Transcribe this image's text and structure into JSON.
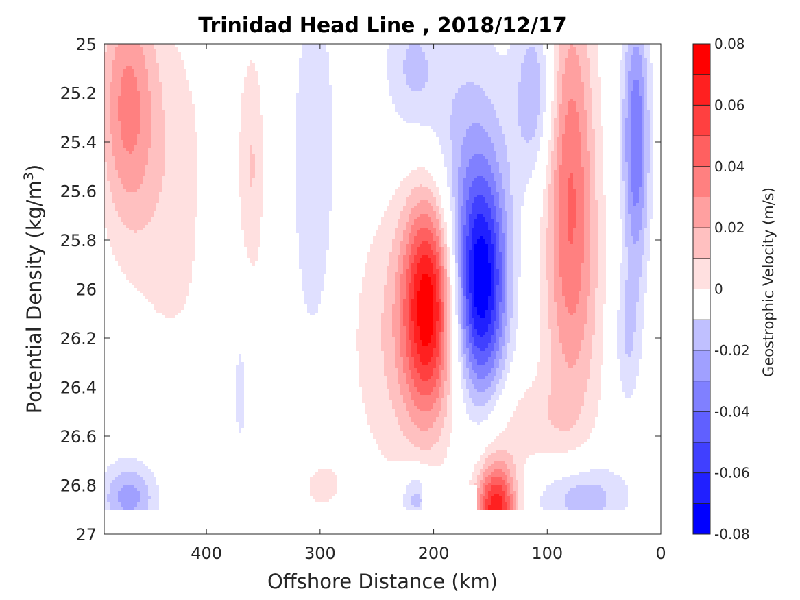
{
  "chart_data": {
    "type": "heatmap",
    "title": "Trinidad Head Line , 2018/12/17",
    "xlabel": "Offshore Distance (km)",
    "ylabel_main": "Potential Density (kg/m",
    "ylabel_sup": "3",
    "ylabel_close": ")",
    "colorbar_label": "Geostrophic Velocity (m/s)",
    "xlim": [
      490,
      0
    ],
    "ylim": [
      25,
      27
    ],
    "x_reversed": true,
    "y_reversed": true,
    "x_ticks": [
      "400",
      "300",
      "200",
      "100",
      "0"
    ],
    "x_tick_values": [
      400,
      300,
      200,
      100,
      0
    ],
    "y_ticks": [
      "25",
      "25.2",
      "25.4",
      "25.6",
      "25.8",
      "26",
      "26.2",
      "26.4",
      "26.6",
      "26.8",
      "27"
    ],
    "y_tick_values": [
      25,
      25.2,
      25.4,
      25.6,
      25.8,
      26,
      26.2,
      26.4,
      26.6,
      26.8,
      27
    ],
    "clim": [
      -0.08,
      0.08
    ],
    "colorbar_ticks": [
      "0.08",
      "0.06",
      "0.04",
      "0.02",
      "0",
      "-0.02",
      "-0.04",
      "-0.06",
      "-0.08"
    ],
    "colorbar_tick_values": [
      0.08,
      0.06,
      0.04,
      0.02,
      0,
      -0.02,
      -0.04,
      -0.06,
      -0.08
    ],
    "levels": [
      -0.08,
      -0.07,
      -0.06,
      -0.05,
      -0.04,
      -0.03,
      -0.02,
      -0.01,
      0,
      0.01,
      0.02,
      0.03,
      0.04,
      0.05,
      0.06,
      0.07,
      0.08
    ],
    "colors": {
      "0.08": "#ff0000",
      "0.07": "#ff2020",
      "0.06": "#ff4040",
      "0.05": "#ff6060",
      "0.04": "#ff8080",
      "0.03": "#ffa0a0",
      "0.02": "#ffc0c0",
      "0.01": "#ffe0e0",
      "0": "#ffffff",
      "-0.01": "#e0e0ff",
      "-0.02": "#c0c0ff",
      "-0.03": "#a0a0ff",
      "-0.04": "#8080ff",
      "-0.05": "#6060ff",
      "-0.06": "#4040ff",
      "-0.07": "#2020ff",
      "-0.08": "#0000ff"
    },
    "features": [
      {
        "x": 470,
        "y": 25.25,
        "sx": 25,
        "sy": 0.5,
        "v": 0.04
      },
      {
        "x": 430,
        "y": 25.6,
        "sx": 40,
        "sy": 0.8,
        "v": 0.015
      },
      {
        "x": 468,
        "y": 26.85,
        "sx": 25,
        "sy": 0.15,
        "v": -0.035
      },
      {
        "x": 395,
        "y": 26.0,
        "sx": 10,
        "sy": 0.6,
        "v": -0.012
      },
      {
        "x": 360,
        "y": 25.5,
        "sx": 12,
        "sy": 0.5,
        "v": 0.02
      },
      {
        "x": 370,
        "y": 26.4,
        "sx": 10,
        "sy": 0.4,
        "v": -0.013
      },
      {
        "x": 305,
        "y": 25.5,
        "sx": 20,
        "sy": 0.8,
        "v": -0.02
      },
      {
        "x": 300,
        "y": 26.8,
        "sx": 25,
        "sy": 0.15,
        "v": 0.013
      },
      {
        "x": 205,
        "y": 26.05,
        "sx": 22,
        "sy": 0.45,
        "v": 0.08
      },
      {
        "x": 230,
        "y": 26.2,
        "sx": 45,
        "sy": 0.6,
        "v": 0.02
      },
      {
        "x": 158,
        "y": 26.0,
        "sx": 22,
        "sy": 0.45,
        "v": -0.08
      },
      {
        "x": 170,
        "y": 25.5,
        "sx": 40,
        "sy": 0.6,
        "v": -0.025
      },
      {
        "x": 220,
        "y": 25.1,
        "sx": 25,
        "sy": 0.3,
        "v": -0.02
      },
      {
        "x": 110,
        "y": 25.2,
        "sx": 18,
        "sy": 0.35,
        "v": -0.03
      },
      {
        "x": 145,
        "y": 26.9,
        "sx": 18,
        "sy": 0.2,
        "v": 0.08
      },
      {
        "x": 215,
        "y": 26.85,
        "sx": 15,
        "sy": 0.12,
        "v": -0.03
      },
      {
        "x": 80,
        "y": 25.5,
        "sx": 22,
        "sy": 0.8,
        "v": 0.045
      },
      {
        "x": 75,
        "y": 26.1,
        "sx": 30,
        "sy": 0.6,
        "v": 0.015
      },
      {
        "x": 70,
        "y": 26.85,
        "sx": 40,
        "sy": 0.15,
        "v": -0.03
      },
      {
        "x": 22,
        "y": 25.4,
        "sx": 12,
        "sy": 0.55,
        "v": -0.05
      },
      {
        "x": 30,
        "y": 26.2,
        "sx": 12,
        "sy": 0.3,
        "v": -0.02
      },
      {
        "x": 120,
        "y": 26.55,
        "sx": 40,
        "sy": 0.2,
        "v": 0.015
      }
    ],
    "masked_regions": [
      {
        "x0": 490,
        "x1": 0,
        "y0": 26.9,
        "y1": 27.0
      },
      {
        "x0": 210,
        "x1": 162,
        "y0": 26.8,
        "y1": 27.0
      }
    ]
  }
}
